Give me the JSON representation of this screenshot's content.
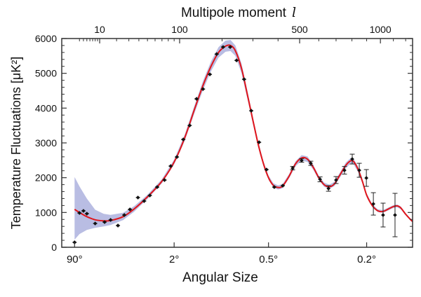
{
  "chart_data": {
    "type": "scatter",
    "title": "",
    "top_axis": {
      "label": "Multipole moment",
      "label_symbol": "l",
      "ticks": [
        {
          "value": 10,
          "label": "10"
        },
        {
          "value": 100,
          "label": "100"
        },
        {
          "value": 500,
          "label": "500"
        },
        {
          "value": 1000,
          "label": "1000"
        }
      ],
      "minor_ticks": [
        3,
        4,
        5,
        6,
        7,
        8,
        9,
        20,
        30,
        40,
        50,
        60,
        70,
        80,
        90,
        200,
        300,
        400,
        600,
        700,
        800,
        900,
        1100,
        1200
      ]
    },
    "xlabel": "Angular Size",
    "bottom_ticks": [
      {
        "value": 2,
        "label": "90°"
      },
      {
        "value": 90,
        "label": "2°"
      },
      {
        "value": 360,
        "label": "0.5°"
      },
      {
        "value": 900,
        "label": "0.2°"
      }
    ],
    "ylabel": "Temperature Fluctuations [μK²]",
    "ylim": [
      0,
      6000
    ],
    "xlim": [
      2,
      1259
    ],
    "yticks": [
      {
        "value": 0,
        "label": "0"
      },
      {
        "value": 1000,
        "label": "1000"
      },
      {
        "value": 2000,
        "label": "2000"
      },
      {
        "value": 3000,
        "label": "3000"
      },
      {
        "value": 4000,
        "label": "4000"
      },
      {
        "value": 5000,
        "label": "5000"
      },
      {
        "value": 6000,
        "label": "6000"
      }
    ],
    "grid": false,
    "colors": {
      "model": "#e0151b",
      "band": "#b9bde3",
      "points": "#111111"
    },
    "model_curve": [
      [
        2,
        1090
      ],
      [
        3,
        1000
      ],
      [
        5,
        880
      ],
      [
        8,
        790
      ],
      [
        12,
        760
      ],
      [
        16,
        770
      ],
      [
        25,
        880
      ],
      [
        35,
        1100
      ],
      [
        50,
        1450
      ],
      [
        70,
        1900
      ],
      [
        90,
        2450
      ],
      [
        110,
        3150
      ],
      [
        130,
        3950
      ],
      [
        150,
        4650
      ],
      [
        170,
        5200
      ],
      [
        190,
        5600
      ],
      [
        210,
        5780
      ],
      [
        225,
        5800
      ],
      [
        240,
        5650
      ],
      [
        260,
        5150
      ],
      [
        280,
        4400
      ],
      [
        300,
        3650
      ],
      [
        320,
        2950
      ],
      [
        340,
        2400
      ],
      [
        360,
        2000
      ],
      [
        380,
        1780
      ],
      [
        400,
        1720
      ],
      [
        420,
        1760
      ],
      [
        450,
        2050
      ],
      [
        480,
        2400
      ],
      [
        510,
        2570
      ],
      [
        540,
        2530
      ],
      [
        570,
        2300
      ],
      [
        600,
        2000
      ],
      [
        630,
        1800
      ],
      [
        660,
        1740
      ],
      [
        690,
        1820
      ],
      [
        720,
        2050
      ],
      [
        760,
        2350
      ],
      [
        790,
        2480
      ],
      [
        810,
        2470
      ],
      [
        840,
        2250
      ],
      [
        870,
        1900
      ],
      [
        900,
        1500
      ],
      [
        940,
        1200
      ],
      [
        980,
        1050
      ],
      [
        1020,
        1030
      ],
      [
        1060,
        1100
      ],
      [
        1100,
        1170
      ],
      [
        1130,
        1190
      ],
      [
        1160,
        1130
      ],
      [
        1200,
        950
      ],
      [
        1240,
        800
      ],
      [
        1259,
        740
      ]
    ],
    "band_lower": [
      220,
      380,
      500,
      560,
      600,
      640,
      780,
      1020,
      1390,
      1840,
      2380,
      3060,
      3840,
      4520,
      5060,
      5450,
      5620,
      5640,
      5500,
      5010,
      4280,
      3550,
      2870,
      2330,
      1940,
      1720,
      1660,
      1700,
      1990,
      2330,
      2490,
      2450,
      2230,
      1940,
      1740,
      1680,
      1760,
      1980,
      2270,
      2400,
      2390,
      2170,
      1840,
      1450,
      1160,
      1010,
      990,
      1060,
      1130,
      1150,
      1090,
      920,
      770,
      710
    ],
    "band_upper": [
      2020,
      1750,
      1400,
      1080,
      960,
      930,
      990,
      1180,
      1510,
      1960,
      2520,
      3240,
      4060,
      4780,
      5340,
      5750,
      5940,
      5960,
      5800,
      5290,
      4520,
      3750,
      3030,
      2470,
      2060,
      1840,
      1780,
      1820,
      2110,
      2470,
      2650,
      2610,
      2370,
      2060,
      1860,
      1800,
      1880,
      2120,
      2430,
      2560,
      2550,
      2330,
      1960,
      1550,
      1240,
      1090,
      1070,
      1140,
      1210,
      1230,
      1170,
      980,
      830,
      770
    ],
    "points": [
      [
        2,
        141,
        20
      ],
      [
        3,
        986,
        20
      ],
      [
        4,
        1046,
        20
      ],
      [
        5,
        966,
        20
      ],
      [
        8,
        684,
        20
      ],
      [
        12.5,
        724,
        20
      ],
      [
        16,
        785,
        20
      ],
      [
        21,
        624,
        20
      ],
      [
        26,
        926,
        20
      ],
      [
        31,
        1087,
        20
      ],
      [
        39,
        1429,
        20
      ],
      [
        46,
        1328,
        20
      ],
      [
        53,
        1489,
        20
      ],
      [
        63,
        1730,
        30
      ],
      [
        74,
        1932,
        30
      ],
      [
        84,
        2334,
        30
      ],
      [
        95,
        2596,
        30
      ],
      [
        107,
        3099,
        30
      ],
      [
        120,
        3501,
        30
      ],
      [
        135,
        4266,
        30
      ],
      [
        150,
        4547,
        30
      ],
      [
        167,
        4970,
        30
      ],
      [
        185,
        5553,
        40
      ],
      [
        203,
        5755,
        40
      ],
      [
        224,
        5755,
        40
      ],
      [
        244,
        5372,
        40
      ],
      [
        269,
        4829,
        40
      ],
      [
        294,
        3924,
        40
      ],
      [
        323,
        3018,
        40
      ],
      [
        352,
        2233,
        40
      ],
      [
        384,
        1730,
        40
      ],
      [
        421,
        1771,
        40
      ],
      [
        466,
        2274,
        50
      ],
      [
        510,
        2495,
        50
      ],
      [
        557,
        2414,
        60
      ],
      [
        607,
        1952,
        70
      ],
      [
        655,
        1690,
        80
      ],
      [
        700,
        1932,
        100
      ],
      [
        752,
        2213,
        110
      ],
      [
        802,
        2535,
        141
      ],
      [
        849,
        2213,
        201
      ],
      [
        898,
        1992,
        241
      ],
      [
        948,
        1247,
        322
      ],
      [
        1020,
        926,
        342
      ],
      [
        1113,
        926,
        624
      ]
    ]
  }
}
